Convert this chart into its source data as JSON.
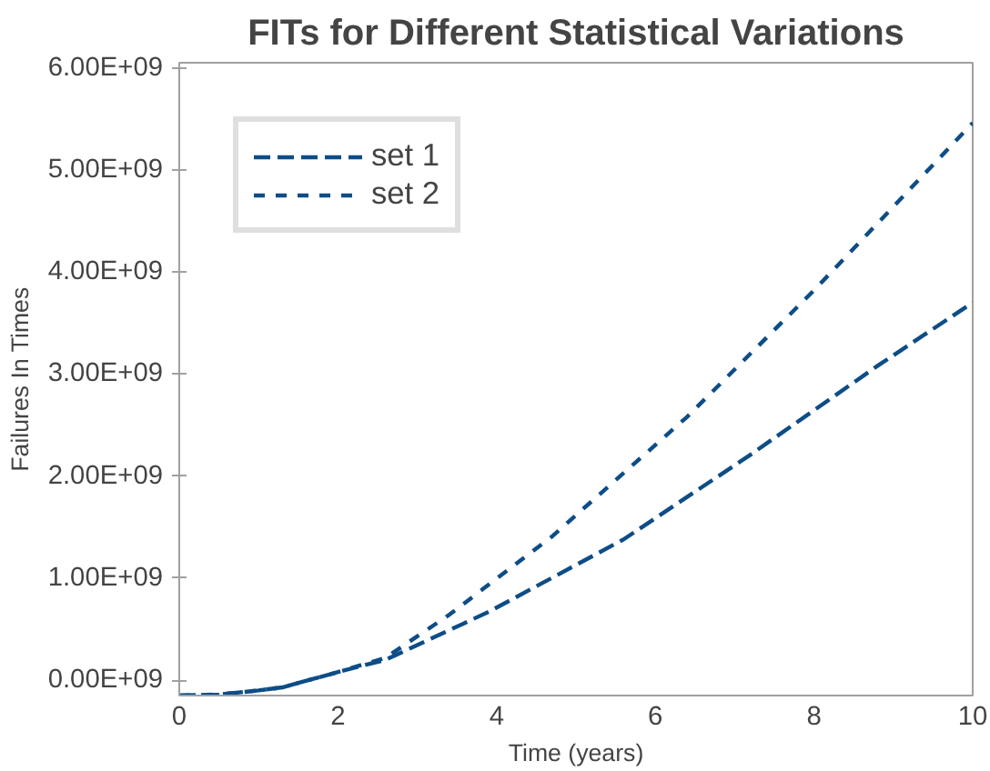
{
  "chart_data": {
    "type": "line",
    "title": "FITs for Different Statistical Variations",
    "xlabel": "Time (years)",
    "ylabel": "Failures In Times",
    "xlim": [
      0,
      10
    ],
    "xticks": [
      0,
      2,
      4,
      6,
      8,
      10
    ],
    "ylim": [
      -150000000,
      6050000000
    ],
    "yticks": [
      {
        "value": 0,
        "label": "0.00E+09"
      },
      {
        "value": 1000000000,
        "label": "1.00E+09"
      },
      {
        "value": 2000000000,
        "label": "2.00E+09"
      },
      {
        "value": 3000000000,
        "label": "3.00E+09"
      },
      {
        "value": 4000000000,
        "label": "4.00E+09"
      },
      {
        "value": 5000000000,
        "label": "5.00E+09"
      },
      {
        "value": 6000000000,
        "label": "6.00E+09"
      }
    ],
    "grid": false,
    "legend": "top left",
    "line_style": "dashed",
    "series": [
      {
        "name": "set 1",
        "color": "#0d4d87",
        "x": [
          0,
          0.5,
          1,
          1.3,
          2,
          2.6,
          3.9,
          5.6,
          7.2,
          8.8,
          10
        ],
        "values": [
          -150000000,
          -140000000,
          -100000000,
          -70000000,
          80000000,
          200000000,
          670000000,
          1380000000,
          2210000000,
          3080000000,
          3700000000
        ]
      },
      {
        "name": "set 2",
        "color": "#0d4d87",
        "x": [
          0,
          0.5,
          1,
          1.3,
          2,
          2.6,
          3.4,
          4.7,
          6.4,
          8,
          10
        ],
        "values": [
          -150000000,
          -140000000,
          -100000000,
          -70000000,
          80000000,
          220000000,
          640000000,
          1410000000,
          2580000000,
          3820000000,
          5460000000
        ]
      }
    ]
  }
}
